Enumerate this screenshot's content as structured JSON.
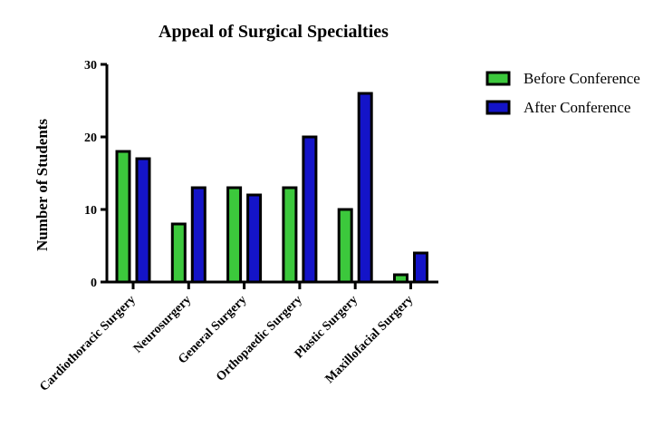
{
  "chart_data": {
    "type": "bar",
    "title": "Appeal of Surgical Specialties",
    "xlabel": "",
    "ylabel": "Number of Students",
    "ylim": [
      0,
      30
    ],
    "yticks": [
      "0",
      "10",
      "20",
      "30"
    ],
    "categories": [
      "Cardiothoracic Surgery",
      "Neurosurgery",
      "General Surgery",
      "Orthopaedic Surgery",
      "Plastic Surgery",
      "Maxillofacial Surgery"
    ],
    "series": [
      {
        "name": "Before Conference",
        "color": "#3cc83c",
        "values": [
          18,
          8,
          13,
          13,
          10,
          1
        ]
      },
      {
        "name": "After Conference",
        "color": "#1414c8",
        "values": [
          17,
          13,
          12,
          20,
          26,
          4
        ]
      }
    ],
    "legend_position": "top-right",
    "grid": false
  }
}
